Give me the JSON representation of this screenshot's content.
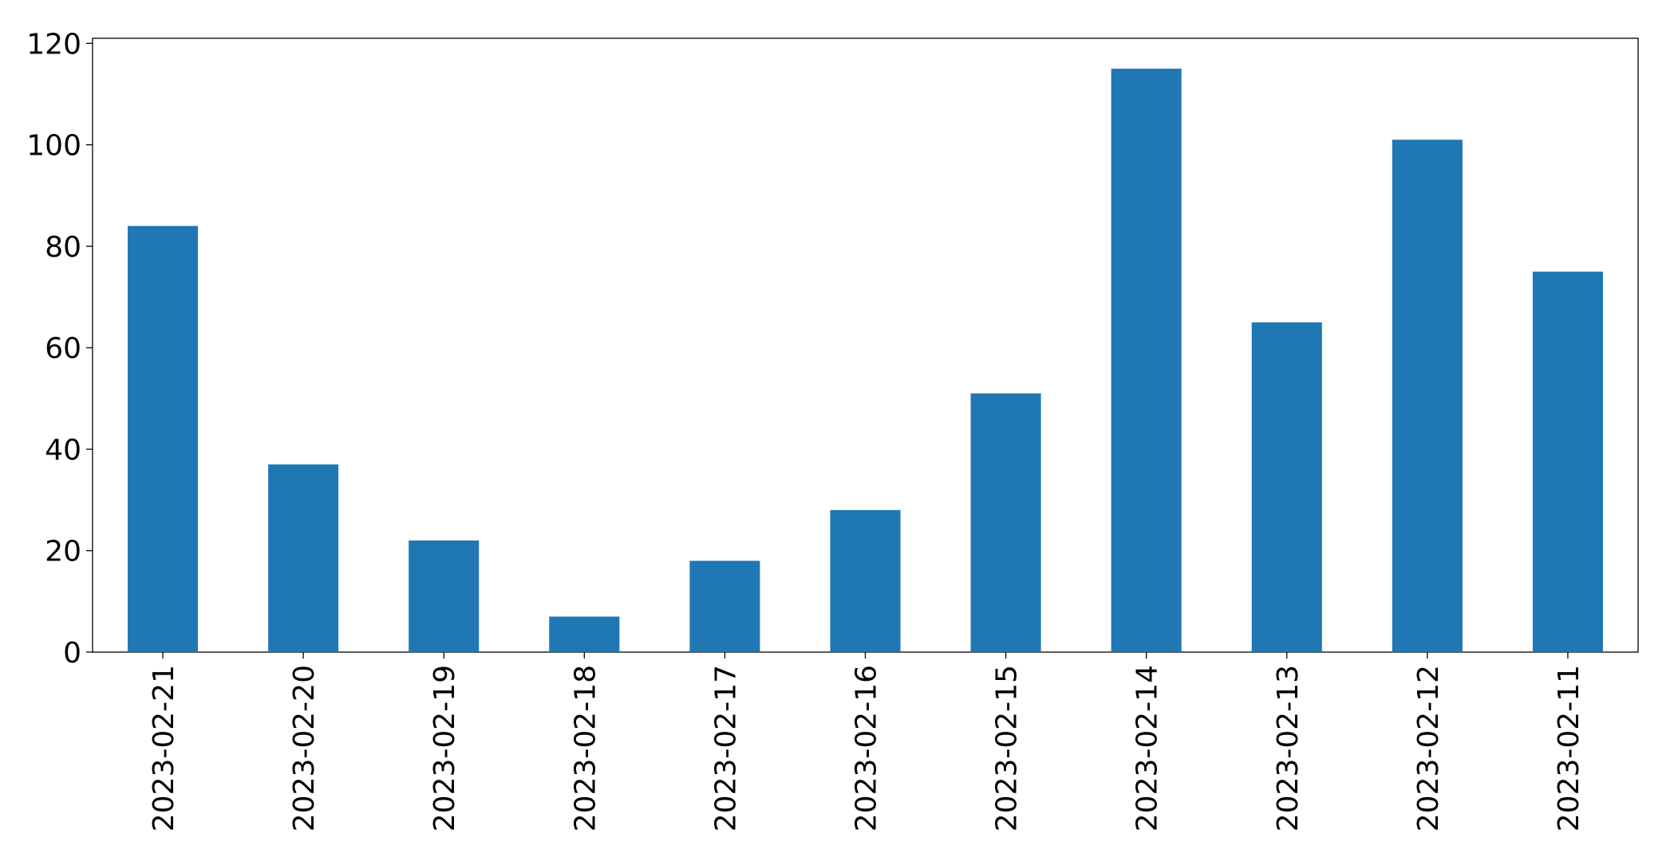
{
  "chart_data": {
    "type": "bar",
    "categories": [
      "2023-02-21",
      "2023-02-20",
      "2023-02-19",
      "2023-02-18",
      "2023-02-17",
      "2023-02-16",
      "2023-02-15",
      "2023-02-14",
      "2023-02-13",
      "2023-02-12",
      "2023-02-11"
    ],
    "values": [
      84,
      37,
      22,
      7,
      18,
      28,
      51,
      115,
      65,
      101,
      75
    ],
    "color": "#1f77b4",
    "ylim": [
      0,
      121
    ],
    "yticks": [
      0,
      20,
      40,
      60,
      80,
      100,
      120
    ],
    "grid": false
  }
}
